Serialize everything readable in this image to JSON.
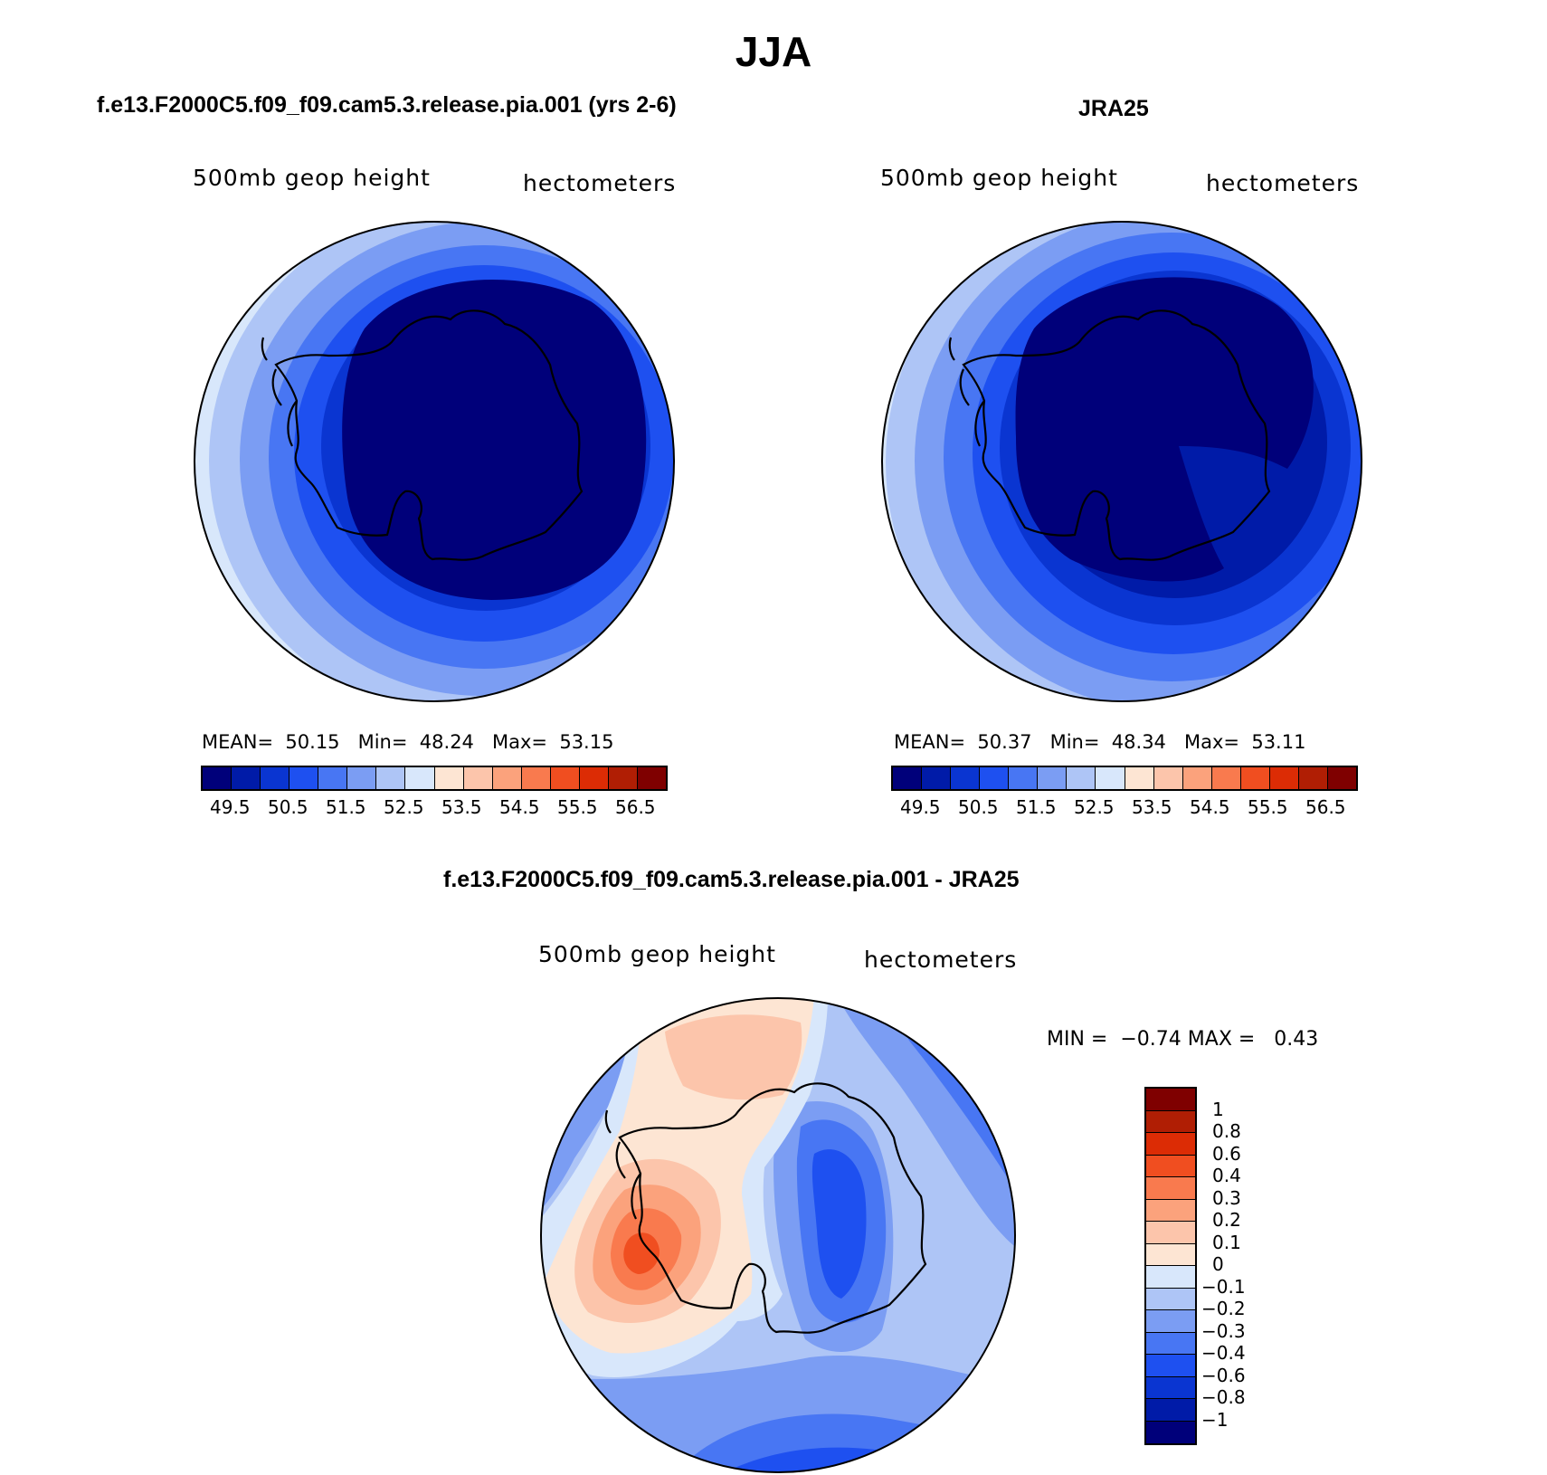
{
  "figure": {
    "title": "JJA"
  },
  "panels": {
    "model": {
      "title": "f.e13.F2000C5.f09_f09.cam5.3.release.pia.001 (yrs 2-6)",
      "variable": "500mb geop height",
      "units": "hectometers",
      "stats": {
        "mean_label": "MEAN=",
        "mean": "50.15",
        "min_label": "Min=",
        "min": "48.24",
        "max_label": "Max=",
        "max": "53.15"
      }
    },
    "obs": {
      "title": "JRA25",
      "variable": "500mb geop height",
      "units": "hectometers",
      "stats": {
        "mean_label": "MEAN=",
        "mean": "50.37",
        "min_label": "Min=",
        "min": "48.34",
        "max_label": "Max=",
        "max": "53.11"
      }
    },
    "diff": {
      "title": "f.e13.F2000C5.f09_f09.cam5.3.release.pia.001 - JRA25",
      "variable": "500mb geop height",
      "units": "hectometers",
      "stats": {
        "min_label": "MIN =",
        "min": "−0.74",
        "max_label": "MAX =",
        "max": "0.43"
      }
    }
  },
  "colorbars": {
    "height": {
      "colors": [
        "#00007a",
        "#001ba8",
        "#0a35d1",
        "#1e50f0",
        "#4876f3",
        "#7b9df3",
        "#aec5f6",
        "#d8e7fb",
        "#fde5d3",
        "#fcc5ab",
        "#fba27c",
        "#f97a4e",
        "#f04e20",
        "#dc2c05",
        "#b01e04",
        "#7f0000"
      ],
      "ticks": [
        "49.5",
        "50.5",
        "51.5",
        "52.5",
        "53.5",
        "54.5",
        "55.5",
        "56.5"
      ]
    },
    "diff": {
      "colors": [
        "#7f0000",
        "#b01e04",
        "#dc2c05",
        "#f04e20",
        "#f97a4e",
        "#fba27c",
        "#fcc5ab",
        "#fde5d3",
        "#d8e7fb",
        "#aec5f6",
        "#7b9df3",
        "#4876f3",
        "#1e50f0",
        "#0a35d1",
        "#001ba8",
        "#00007a"
      ],
      "ticks": [
        "1",
        "0.8",
        "0.6",
        "0.4",
        "0.3",
        "0.2",
        "0.1",
        "0",
        "−0.1",
        "−0.2",
        "−0.3",
        "−0.4",
        "−0.6",
        "−0.8",
        "−1"
      ]
    }
  }
}
